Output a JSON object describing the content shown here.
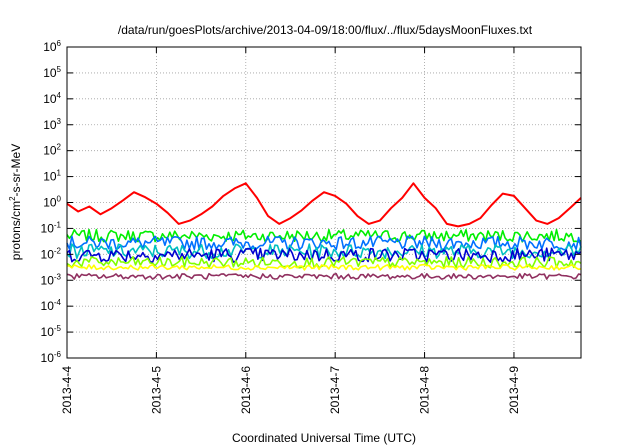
{
  "chart_data": {
    "type": "line",
    "title": "/data/run/goesPlots/archive/2013-04-09/18:00/flux/../flux/5daysMoonFluxes.txt",
    "xlabel": "Coordinated Universal Time (UTC)",
    "ylabel": {
      "prefix": "protons/cm",
      "superscript": "2",
      "suffix": "-s-sr-MeV"
    },
    "y_scale": "log",
    "ylim": [
      1e-06,
      1000000.0
    ],
    "y_ticks": [
      {
        "base": "10",
        "exp": "6",
        "value": 1000000.0
      },
      {
        "base": "10",
        "exp": "5",
        "value": 100000.0
      },
      {
        "base": "10",
        "exp": "4",
        "value": 10000.0
      },
      {
        "base": "10",
        "exp": "3",
        "value": 1000.0
      },
      {
        "base": "10",
        "exp": "2",
        "value": 100.0
      },
      {
        "base": "10",
        "exp": "1",
        "value": 10.0
      },
      {
        "base": "10",
        "exp": "0",
        "value": 1.0
      },
      {
        "base": "10",
        "exp": "-1",
        "value": 0.1
      },
      {
        "base": "10",
        "exp": "-2",
        "value": 0.01
      },
      {
        "base": "10",
        "exp": "-3",
        "value": 0.001
      },
      {
        "base": "10",
        "exp": "-4",
        "value": 0.0001
      },
      {
        "base": "10",
        "exp": "-5",
        "value": 1e-05
      },
      {
        "base": "10",
        "exp": "-6",
        "value": 1e-06
      }
    ],
    "x_ticks": [
      "2013-4-4",
      "2013-4-5",
      "2013-4-6",
      "2013-4-7",
      "2013-4-8",
      "2013-4-9"
    ],
    "xlim": [
      "2013-04-04T00:00",
      "2013-04-09T18:00"
    ],
    "grid": true,
    "series": [
      {
        "color": "#ff0000",
        "x": [
          "2013-04-04T00:00",
          "2013-04-04T03:00",
          "2013-04-04T06:00",
          "2013-04-04T09:00",
          "2013-04-04T12:00",
          "2013-04-04T15:00",
          "2013-04-04T18:00",
          "2013-04-04T21:00",
          "2013-04-05T00:00",
          "2013-04-05T03:00",
          "2013-04-05T06:00",
          "2013-04-05T09:00",
          "2013-04-05T12:00",
          "2013-04-05T15:00",
          "2013-04-05T18:00",
          "2013-04-05T21:00",
          "2013-04-06T00:00",
          "2013-04-06T03:00",
          "2013-04-06T06:00",
          "2013-04-06T09:00",
          "2013-04-06T12:00",
          "2013-04-06T15:00",
          "2013-04-06T18:00",
          "2013-04-06T21:00",
          "2013-04-07T00:00",
          "2013-04-07T03:00",
          "2013-04-07T06:00",
          "2013-04-07T09:00",
          "2013-04-07T12:00",
          "2013-04-07T15:00",
          "2013-04-07T18:00",
          "2013-04-07T21:00",
          "2013-04-08T00:00",
          "2013-04-08T03:00",
          "2013-04-08T06:00",
          "2013-04-08T09:00",
          "2013-04-08T12:00",
          "2013-04-08T15:00",
          "2013-04-08T18:00",
          "2013-04-08T21:00",
          "2013-04-09T00:00",
          "2013-04-09T03:00",
          "2013-04-09T06:00",
          "2013-04-09T09:00",
          "2013-04-09T12:00",
          "2013-04-09T15:00",
          "2013-04-09T18:00"
        ],
        "values": [
          0.9,
          0.45,
          0.7,
          0.35,
          0.6,
          1.2,
          2.5,
          1.6,
          0.9,
          0.4,
          0.15,
          0.2,
          0.35,
          0.7,
          1.8,
          3.5,
          5.5,
          1.5,
          0.3,
          0.15,
          0.25,
          0.5,
          1.2,
          2.5,
          1.8,
          0.9,
          0.3,
          0.15,
          0.2,
          0.6,
          1.5,
          5.5,
          1.5,
          0.6,
          0.15,
          0.12,
          0.15,
          0.25,
          0.8,
          2.2,
          1.8,
          0.6,
          0.2,
          0.15,
          0.25,
          0.6,
          1.5
        ]
      },
      {
        "color": "#00ee00",
        "band": [
          0.03,
          0.09
        ]
      },
      {
        "color": "#0070ff",
        "band": [
          0.015,
          0.05
        ]
      },
      {
        "color": "#00c0c0",
        "band": [
          0.007,
          0.025
        ]
      },
      {
        "color": "#0000d0",
        "band": [
          0.005,
          0.018
        ]
      },
      {
        "color": "#80ff00",
        "band": [
          0.003,
          0.008
        ]
      },
      {
        "color": "#ffff00",
        "band": [
          0.0025,
          0.004
        ]
      },
      {
        "color": "#903060",
        "band": [
          0.0011,
          0.0018
        ]
      }
    ]
  }
}
